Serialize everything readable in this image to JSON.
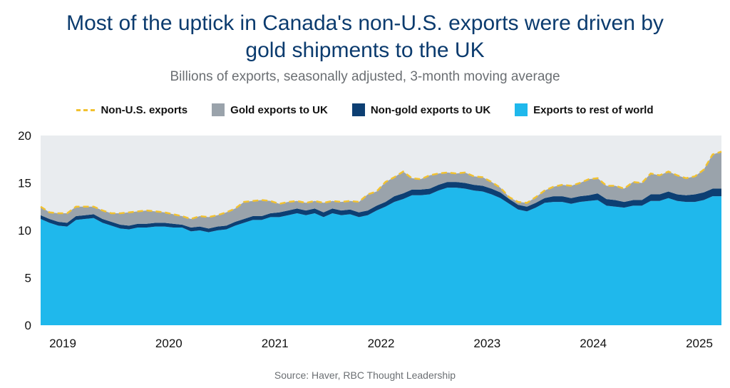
{
  "title_line1": "Most of the uptick in Canada's non-U.S. exports were driven by",
  "title_line2": "gold shipments to the UK",
  "subtitle": "Billions of exports, seasonally adjusted, 3-month moving average",
  "source": "Source: Haver, RBC Thought Leadership",
  "colors": {
    "rest": "#1fb8ec",
    "nongold": "#0d3f73",
    "gold": "#9aa3ab",
    "total": "#f2c230",
    "plot_bg": "#e9ecef"
  },
  "legend": [
    {
      "label": "Non-U.S. exports",
      "kind": "dash",
      "color": "#f2c230"
    },
    {
      "label": "Gold exports to UK",
      "kind": "box",
      "color": "#9aa3ab"
    },
    {
      "label": "Non-gold exports to UK",
      "kind": "box",
      "color": "#0d3f73"
    },
    {
      "label": "Exports to rest of world",
      "kind": "box",
      "color": "#1fb8ec"
    }
  ],
  "chart_data": {
    "type": "area",
    "stacked": true,
    "x_start": "2019-01",
    "x_frequency": "monthly",
    "x_tick_labels": [
      "2019",
      "2020",
      "2021",
      "2022",
      "2023",
      "2024",
      "2025"
    ],
    "y_ticks": [
      0,
      5,
      10,
      15,
      20
    ],
    "ylim": [
      0,
      20
    ],
    "series": [
      {
        "name": "Exports to rest of world",
        "values": [
          11.2,
          10.8,
          10.5,
          10.4,
          11.1,
          11.2,
          11.3,
          10.8,
          10.5,
          10.2,
          10.1,
          10.3,
          10.3,
          10.4,
          10.4,
          10.3,
          10.3,
          9.9,
          10.0,
          9.8,
          10.0,
          10.1,
          10.5,
          10.8,
          11.1,
          11.1,
          11.4,
          11.4,
          11.6,
          11.8,
          11.6,
          11.8,
          11.4,
          11.8,
          11.6,
          11.7,
          11.4,
          11.6,
          12.1,
          12.5,
          13.0,
          13.3,
          13.7,
          13.7,
          13.8,
          14.2,
          14.5,
          14.5,
          14.4,
          14.2,
          14.1,
          13.8,
          13.4,
          12.8,
          12.2,
          12.0,
          12.4,
          12.9,
          13.0,
          13.0,
          12.8,
          13.0,
          13.1,
          13.2,
          12.6,
          12.5,
          12.4,
          12.6,
          12.6,
          13.1,
          13.1,
          13.4,
          13.1,
          13.0,
          13.0,
          13.2,
          13.6,
          13.6
        ]
      },
      {
        "name": "Non-gold exports to UK",
        "values": [
          0.4,
          0.4,
          0.4,
          0.4,
          0.4,
          0.4,
          0.4,
          0.4,
          0.4,
          0.4,
          0.4,
          0.4,
          0.4,
          0.4,
          0.4,
          0.4,
          0.3,
          0.4,
          0.4,
          0.4,
          0.4,
          0.4,
          0.4,
          0.4,
          0.4,
          0.4,
          0.4,
          0.5,
          0.5,
          0.5,
          0.5,
          0.5,
          0.5,
          0.5,
          0.5,
          0.5,
          0.5,
          0.5,
          0.5,
          0.5,
          0.6,
          0.6,
          0.6,
          0.6,
          0.6,
          0.6,
          0.6,
          0.6,
          0.6,
          0.6,
          0.6,
          0.6,
          0.6,
          0.5,
          0.5,
          0.5,
          0.5,
          0.5,
          0.6,
          0.6,
          0.6,
          0.6,
          0.6,
          0.7,
          0.7,
          0.7,
          0.6,
          0.6,
          0.6,
          0.7,
          0.7,
          0.7,
          0.7,
          0.7,
          0.8,
          0.8,
          0.8,
          0.8
        ]
      },
      {
        "name": "Gold exports to UK",
        "values": [
          0.9,
          0.7,
          0.9,
          1.0,
          1.0,
          0.9,
          0.8,
          0.9,
          0.9,
          1.2,
          1.4,
          1.3,
          1.4,
          1.2,
          1.1,
          1.0,
          0.9,
          0.9,
          1.1,
          1.2,
          1.2,
          1.4,
          1.4,
          1.8,
          1.6,
          1.7,
          1.3,
          0.9,
          0.9,
          0.8,
          0.8,
          0.8,
          1.0,
          0.8,
          0.9,
          0.9,
          1.1,
          1.7,
          1.5,
          2.1,
          2.0,
          2.3,
          1.2,
          1.1,
          1.4,
          1.2,
          1.0,
          0.9,
          1.1,
          0.9,
          0.9,
          0.7,
          0.5,
          0.2,
          0.3,
          0.4,
          0.6,
          0.8,
          1.0,
          1.2,
          1.3,
          1.4,
          1.7,
          1.6,
          1.4,
          1.5,
          1.4,
          1.9,
          1.8,
          2.2,
          2.0,
          2.1,
          2.0,
          1.8,
          1.9,
          2.4,
          3.6,
          3.9
        ]
      }
    ],
    "total_series": {
      "name": "Non-U.S. exports",
      "style": "dashed"
    },
    "grid": false,
    "legend_position": "top"
  }
}
